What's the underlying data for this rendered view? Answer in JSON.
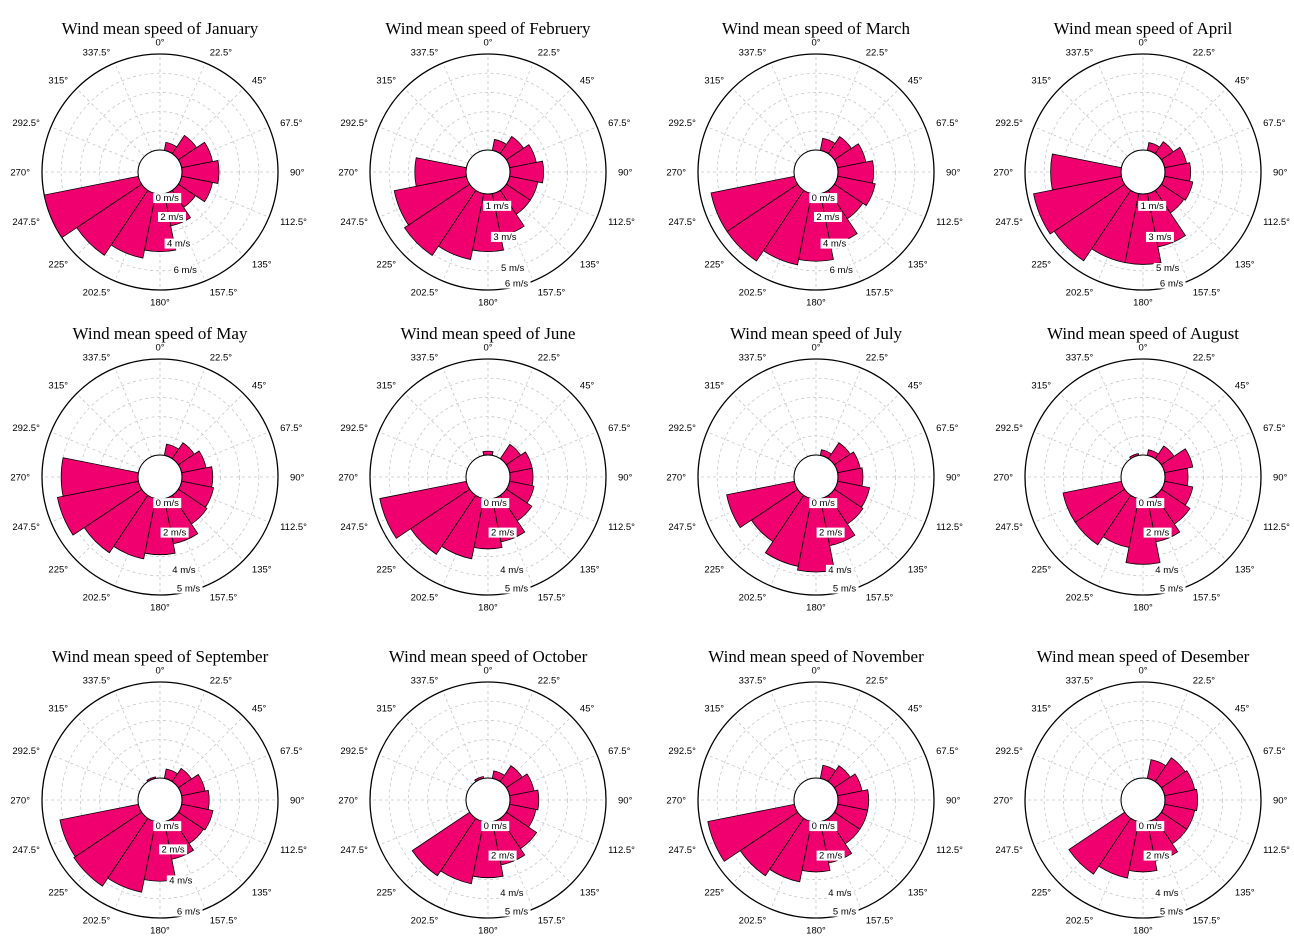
{
  "colors": {
    "petal": "#f0006f"
  },
  "directions": [
    "0°",
    "22.5°",
    "45°",
    "67.5°",
    "90°",
    "112.5°",
    "135°",
    "157.5°",
    "180°",
    "202.5°",
    "225°",
    "247.5°",
    "270°",
    "292.5°",
    "315°",
    "337.5°"
  ],
  "chart_data": [
    {
      "type": "rose",
      "title": "Wind mean speed of January",
      "rmax": 7,
      "radial_ticks": [
        "0 m/s",
        "2 m/s",
        "4 m/s",
        "6 m/s"
      ],
      "radial_values": [
        0,
        2,
        4,
        6
      ],
      "values": [
        0,
        0.6,
        1.6,
        2.3,
        2.7,
        2.3,
        1.5,
        2.4,
        4.2,
        4.8,
        5.7,
        7.0,
        0,
        0,
        0,
        0
      ]
    },
    {
      "type": "rose",
      "title": "Wind mean speed of Februery",
      "rmax": 6,
      "radial_ticks": [
        "1 m/s",
        "3 m/s",
        "5 m/s",
        "6 m/s"
      ],
      "radial_values": [
        1,
        3,
        5,
        6
      ],
      "values": [
        0,
        0.7,
        1.3,
        1.7,
        2.1,
        1.8,
        1.8,
        2.7,
        3.6,
        4.2,
        4.9,
        4.6,
        3.2,
        0,
        0,
        0
      ]
    },
    {
      "type": "rose",
      "title": "Wind mean speed of March",
      "rmax": 7,
      "radial_ticks": [
        "0 m/s",
        "2 m/s",
        "4 m/s",
        "6 m/s"
      ],
      "radial_values": [
        0,
        2,
        4,
        6
      ],
      "values": [
        0,
        0.9,
        1.5,
        2.1,
        2.6,
        2.8,
        2.5,
        3.8,
        4.9,
        5.3,
        6.2,
        6.2,
        0,
        0,
        0,
        0
      ]
    },
    {
      "type": "rose",
      "title": "Wind mean speed of April",
      "rmax": 6,
      "radial_ticks": [
        "1 m/s",
        "3 m/s",
        "5 m/s",
        "6 m/s"
      ],
      "radial_values": [
        1,
        3,
        5,
        6
      ],
      "values": [
        0,
        0.5,
        0.9,
        1.4,
        1.6,
        1.8,
        1.7,
        3.4,
        4.4,
        4.4,
        5.3,
        5.6,
        4.4,
        0,
        0,
        0
      ]
    },
    {
      "type": "rose",
      "title": "Wind mean speed of May",
      "rmax": 5,
      "radial_ticks": [
        "0 m/s",
        "2 m/s",
        "4 m/s",
        "5 m/s"
      ],
      "radial_values": [
        0,
        2,
        4,
        5
      ],
      "values": [
        0,
        0.6,
        1.0,
        1.3,
        1.6,
        1.7,
        1.8,
        2.4,
        2.9,
        3.2,
        3.6,
        4.3,
        4.0,
        0,
        0,
        0
      ]
    },
    {
      "type": "rose",
      "title": "Wind mean speed of June",
      "rmax": 5,
      "radial_ticks": [
        "0 m/s",
        "2 m/s",
        "4 m/s",
        "5 m/s"
      ],
      "radial_values": [
        0,
        2,
        4,
        5
      ],
      "values": [
        0.2,
        0,
        0.9,
        1.2,
        1.2,
        1.3,
        1.6,
        2.3,
        2.6,
        3.2,
        3.7,
        4.6,
        0,
        0,
        0,
        0
      ]
    },
    {
      "type": "rose",
      "title": "Wind mean speed of July",
      "rmax": 5,
      "radial_ticks": [
        "0 m/s",
        "2 m/s",
        "4 m/s",
        "5 m/s"
      ],
      "radial_values": [
        0,
        2,
        4,
        5
      ],
      "values": [
        0,
        0.3,
        1.0,
        1.2,
        1.3,
        1.7,
        1.8,
        2.5,
        3.8,
        3.6,
        2.9,
        3.6,
        0,
        0,
        0,
        0
      ]
    },
    {
      "type": "rose",
      "title": "Wind mean speed of August",
      "rmax": 5,
      "radial_ticks": [
        "0 m/s",
        "2 m/s",
        "4 m/s",
        "5 m/s"
      ],
      "radial_values": [
        0,
        2,
        4,
        5
      ],
      "values": [
        0,
        0.3,
        0.8,
        1.5,
        1.2,
        1.5,
        1.8,
        2.3,
        3.4,
        2.6,
        3.1,
        3.1,
        0,
        0,
        0,
        0.1
      ]
    },
    {
      "type": "rose",
      "title": "Wind mean speed of September",
      "rmax": 6,
      "radial_ticks": [
        "0 m/s",
        "2 m/s",
        "4 m/s",
        "6 m/s"
      ],
      "radial_values": [
        0,
        2,
        4,
        6
      ],
      "values": [
        0,
        0.6,
        1.0,
        1.5,
        1.7,
        2.0,
        1.9,
        2.4,
        3.7,
        4.5,
        5.1,
        5.0,
        0,
        0,
        0,
        0.1
      ]
    },
    {
      "type": "rose",
      "title": "Wind mean speed of October",
      "rmax": 5,
      "radial_ticks": [
        "0 m/s",
        "2 m/s",
        "4 m/s",
        "5 m/s"
      ],
      "radial_values": [
        0,
        2,
        4,
        5
      ],
      "values": [
        0,
        0.4,
        1.0,
        1.3,
        1.5,
        1.4,
        1.9,
        2.3,
        2.9,
        3.3,
        3.6,
        0,
        0,
        0,
        0,
        0.1
      ]
    },
    {
      "type": "rose",
      "title": "Wind mean speed of November",
      "rmax": 5,
      "radial_ticks": [
        "0 m/s",
        "2 m/s",
        "4 m/s",
        "5 m/s"
      ],
      "radial_values": [
        0,
        2,
        4,
        5
      ],
      "values": [
        0,
        0.7,
        1.0,
        1.3,
        1.6,
        1.6,
        1.6,
        2.2,
        2.6,
        3.2,
        3.6,
        4.6,
        0,
        0,
        0,
        0
      ]
    },
    {
      "type": "rose",
      "title": "Wind mean speed of Desember",
      "rmax": 5,
      "radial_ticks": [
        "0 m/s",
        "2 m/s",
        "4 m/s",
        "5 m/s"
      ],
      "radial_values": [
        0,
        2,
        4,
        5
      ],
      "values": [
        0,
        1.0,
        1.5,
        1.6,
        1.7,
        1.6,
        1.6,
        2.1,
        2.6,
        3.0,
        3.5,
        0,
        0,
        0,
        0,
        0
      ]
    }
  ]
}
